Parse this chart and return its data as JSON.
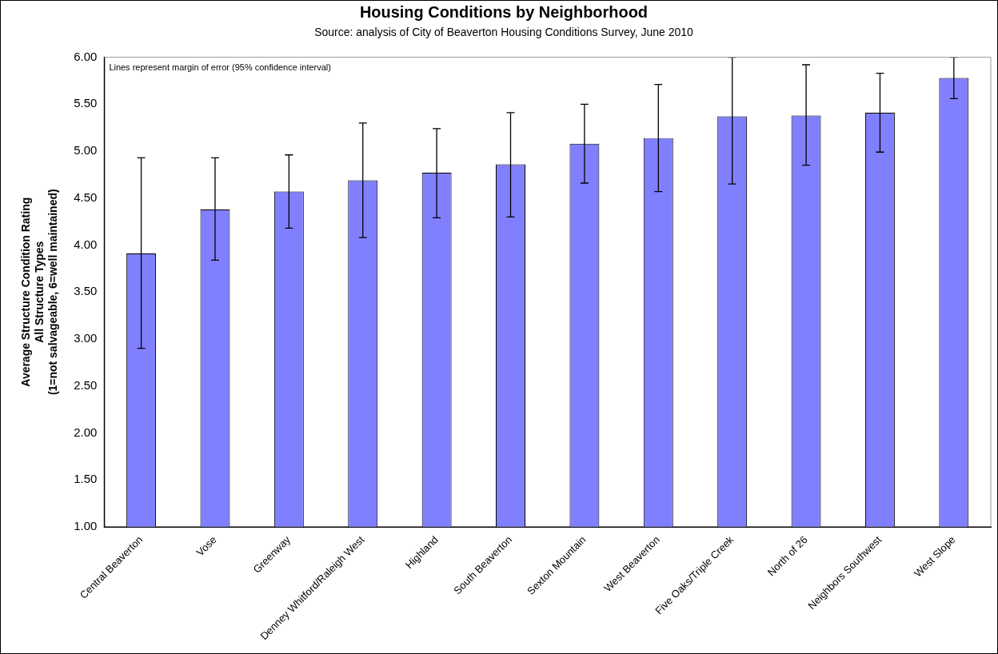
{
  "chart_data": {
    "type": "bar",
    "title": "Housing Conditions by Neighborhood",
    "subtitle": "Source: analysis of City of Beaverton Housing Conditions Survey, June 2010",
    "ylabel": "Average Structure Condition Rating\nAll Structure Types\n(1=not salvageable, 6=well maintained)",
    "categories": [
      "Central Beaverton",
      "Vose",
      "Greenway",
      "Denney Whitford/Raleigh West",
      "Highland",
      "South Beaverton",
      "Sexton Mountain",
      "West Beaverton",
      "Five Oaks/Triple Creek",
      "North of 26",
      "Neighbors Southwest",
      "West Slope"
    ],
    "values": [
      3.91,
      4.38,
      4.57,
      4.69,
      4.77,
      4.86,
      5.08,
      5.14,
      5.37,
      5.38,
      5.41,
      5.78
    ],
    "errors": [
      [
        2.9,
        4.93
      ],
      [
        3.84,
        4.93
      ],
      [
        4.18,
        4.96
      ],
      [
        4.08,
        5.3
      ],
      [
        4.29,
        5.24
      ],
      [
        4.3,
        5.41
      ],
      [
        4.66,
        5.5
      ],
      [
        4.57,
        5.71
      ],
      [
        4.65,
        6.0
      ],
      [
        4.85,
        5.92
      ],
      [
        4.99,
        5.83
      ],
      [
        5.56,
        6.0
      ]
    ],
    "color": "#8080ff",
    "ylim": [
      1,
      6
    ],
    "yticks": [
      {
        "value": 1,
        "label": "1.00"
      },
      {
        "value": 1.5,
        "label": "1.50"
      },
      {
        "value": 2,
        "label": "2.00"
      },
      {
        "value": 2.5,
        "label": "2.50"
      },
      {
        "value": 3,
        "label": "3.00"
      },
      {
        "value": 3.5,
        "label": "3.50"
      },
      {
        "value": 4,
        "label": "4.00"
      },
      {
        "value": 4.5,
        "label": "4.50"
      },
      {
        "value": 5,
        "label": "5.00"
      },
      {
        "value": 5.5,
        "label": "5.50"
      },
      {
        "value": 6,
        "label": "6.00"
      }
    ],
    "annotations": [
      "Lines represent margin of error (95% confidence interval)"
    ],
    "grid": false,
    "legend": false
  }
}
